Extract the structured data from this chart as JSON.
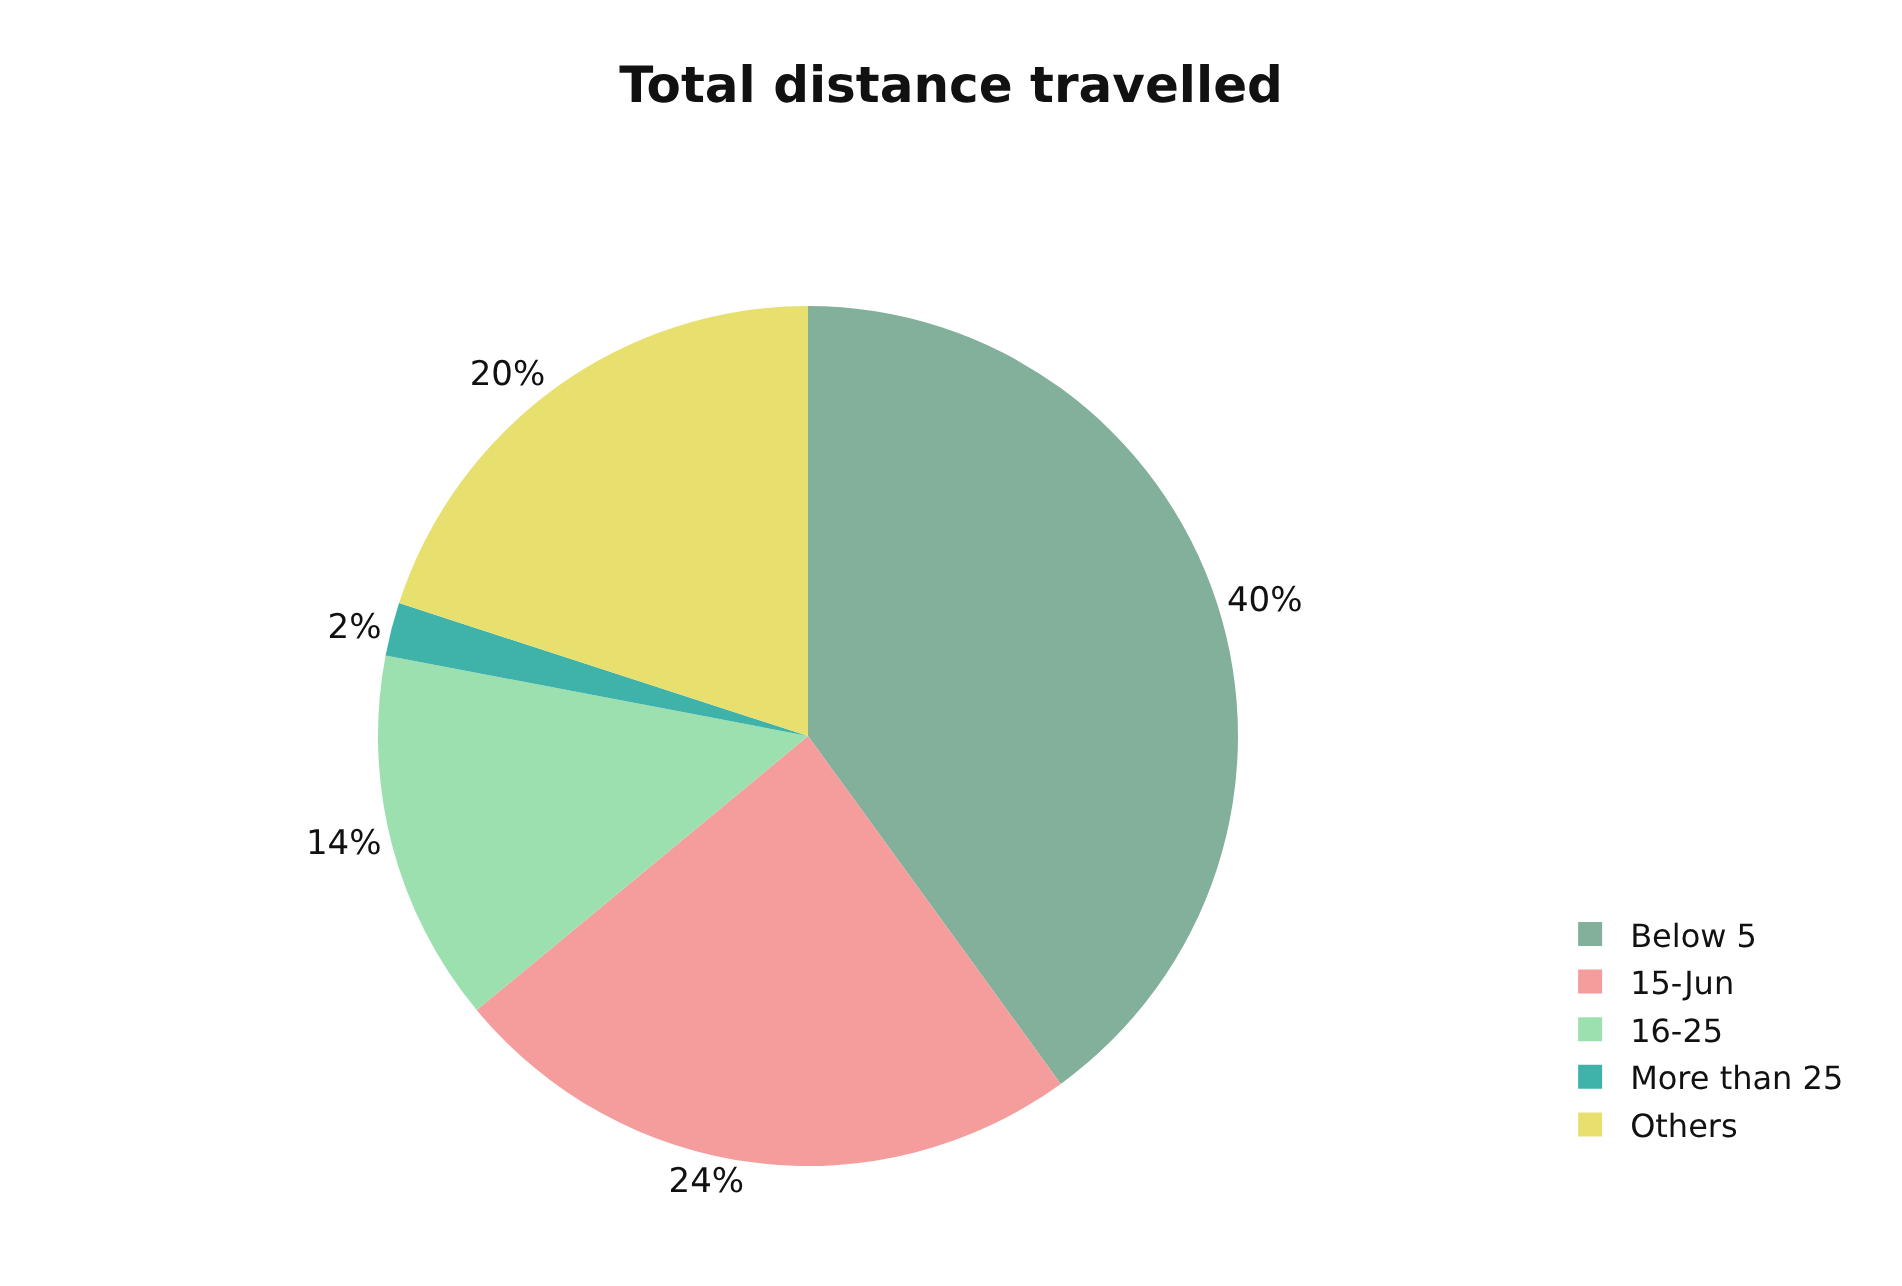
{
  "chart_data": {
    "type": "pie",
    "title": "Total distance travelled",
    "categories": [
      "Below 5",
      "15-Jun",
      "16-25",
      "More than 25",
      "Others"
    ],
    "values": [
      40,
      24,
      14,
      2,
      20
    ],
    "value_labels": [
      "40%",
      "24%",
      "14%",
      "2%",
      "20%"
    ],
    "colors": [
      "#82b09b",
      "#f59c9c",
      "#9de0b0",
      "#3fb2aa",
      "#e8e06e"
    ],
    "legend": "bottom right"
  }
}
